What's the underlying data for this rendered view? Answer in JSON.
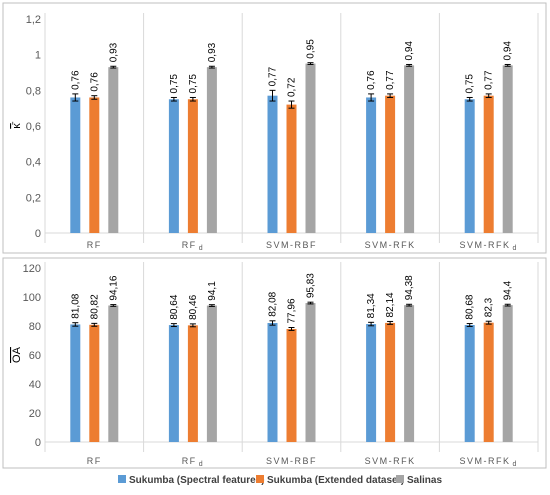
{
  "colors": {
    "sukumba_spectral": "#5B9BD5",
    "sukumba_extended": "#ED7D31",
    "salinas": "#A5A5A5",
    "grid": "#D9D9D9",
    "axis_text": "#595959",
    "frame": "#BFBFBF"
  },
  "legend": {
    "items": [
      {
        "label": "Sukumba (Spectral features)",
        "color": "#5B9BD5"
      },
      {
        "label": "Sukumba (Extended dataset)",
        "color": "#ED7D31"
      },
      {
        "label": "Salinas",
        "color": "#A5A5A5"
      }
    ]
  },
  "chart_data": [
    {
      "type": "bar",
      "ylabel": "κ̄",
      "ylim": [
        0,
        1.2
      ],
      "yticks": [
        "0",
        "0,2",
        "0,4",
        "0,6",
        "0,8",
        "1",
        "1,2"
      ],
      "grid": "vertical separators",
      "categories": [
        {
          "name": "RF",
          "sub": ""
        },
        {
          "name": "RF",
          "sub": "d"
        },
        {
          "name": "SVM-RBF",
          "sub": ""
        },
        {
          "name": "SVM-RFK",
          "sub": ""
        },
        {
          "name": "SVM-RFK",
          "sub": "d"
        }
      ],
      "series": [
        {
          "name": "Sukumba (Spectral features)",
          "values": [
            0.76,
            0.75,
            0.77,
            0.76,
            0.75
          ],
          "labels": [
            "0,76",
            "0,75",
            "0,77",
            "0,76",
            "0,75"
          ],
          "errors": [
            0.02,
            0.01,
            0.03,
            0.02,
            0.01
          ]
        },
        {
          "name": "Sukumba (Extended dataset)",
          "values": [
            0.76,
            0.75,
            0.72,
            0.77,
            0.77
          ],
          "labels": [
            "0,76",
            "0,75",
            "0,72",
            "0,77",
            "0,77"
          ],
          "errors": [
            0.01,
            0.01,
            0.02,
            0.01,
            0.01
          ]
        },
        {
          "name": "Salinas",
          "values": [
            0.93,
            0.93,
            0.95,
            0.94,
            0.94
          ],
          "labels": [
            "0,93",
            "0,93",
            "0,95",
            "0,94",
            "0,94"
          ],
          "errors": [
            0.005,
            0.005,
            0.005,
            0.005,
            0.005
          ]
        }
      ]
    },
    {
      "type": "bar",
      "ylabel": "OA",
      "ylim": [
        0,
        120
      ],
      "yticks": [
        "0",
        "20",
        "40",
        "60",
        "80",
        "100",
        "120"
      ],
      "grid": "vertical separators",
      "categories": [
        {
          "name": "RF",
          "sub": ""
        },
        {
          "name": "RF",
          "sub": "d"
        },
        {
          "name": "SVM-RBF",
          "sub": ""
        },
        {
          "name": "SVM-RFK",
          "sub": ""
        },
        {
          "name": "SVM-RFK",
          "sub": "d"
        }
      ],
      "series": [
        {
          "name": "Sukumba (Spectral features)",
          "values": [
            81.08,
            80.64,
            82.08,
            81.34,
            80.68
          ],
          "labels": [
            "81,08",
            "80,64",
            "82,08",
            "81,34",
            "80,68"
          ],
          "errors": [
            1.2,
            1.0,
            1.5,
            1.2,
            1.0
          ]
        },
        {
          "name": "Sukumba (Extended dataset)",
          "values": [
            80.82,
            80.46,
            77.96,
            82.14,
            82.3
          ],
          "labels": [
            "80,82",
            "80,46",
            "77,96",
            "82,14",
            "82,3"
          ],
          "errors": [
            1.0,
            1.0,
            1.0,
            1.0,
            1.0
          ]
        },
        {
          "name": "Salinas",
          "values": [
            94.16,
            94.1,
            95.83,
            94.38,
            94.4
          ],
          "labels": [
            "94,16",
            "94,1",
            "95,83",
            "94,38",
            "94,4"
          ],
          "errors": [
            0.6,
            0.6,
            0.6,
            0.6,
            0.6
          ]
        }
      ]
    }
  ]
}
